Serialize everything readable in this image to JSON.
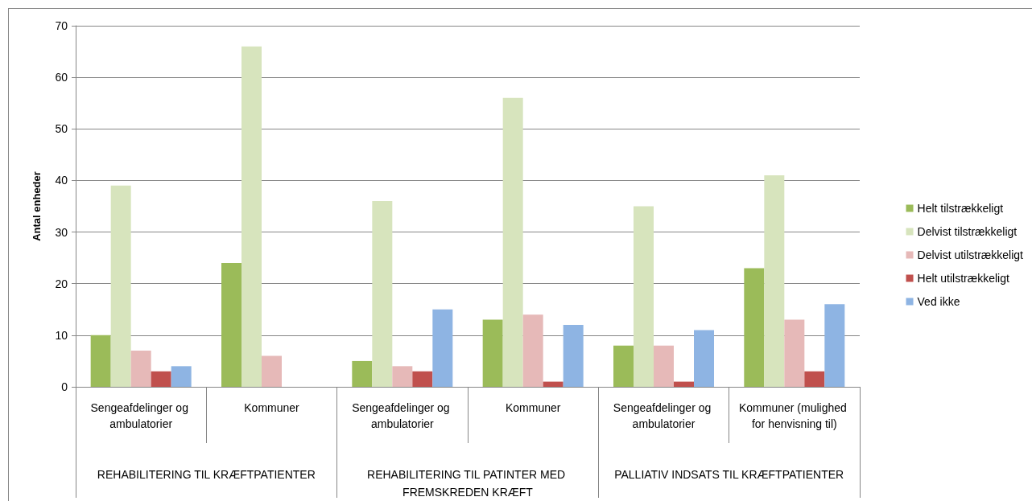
{
  "chart_data": {
    "type": "bar",
    "ylabel": "Antal enheder",
    "categories": [
      "Sengeafdelinger og ambulatorier",
      "Kommuner",
      "Sengeafdelinger og ambulatorier",
      "Kommuner",
      "Sengeafdelinger og ambulatorier",
      "Kommuner (mulighed for henvisning til)"
    ],
    "annotations": [
      "REHABILITERING TIL KRÆFTPATIENTER",
      "REHABILITERING TIL PATINTER MED FREMSKREDEN KRÆFT",
      "PALLIATIV INDSATS TIL KRÆFTPATIENTER"
    ],
    "series": [
      {
        "name": "Helt tilstrækkeligt",
        "color": "#9bbb59",
        "values": [
          10,
          24,
          5,
          13,
          8,
          23
        ]
      },
      {
        "name": "Delvist tilstrækkeligt",
        "color": "#d7e4bd",
        "values": [
          39,
          66,
          36,
          56,
          35,
          41
        ]
      },
      {
        "name": "Delvist utilstrækkeligt",
        "color": "#e6b9b8",
        "values": [
          7,
          6,
          4,
          14,
          8,
          13
        ]
      },
      {
        "name": "Helt utilstrækkeligt",
        "color": "#c0504d",
        "values": [
          3,
          null,
          3,
          1,
          1,
          3
        ]
      },
      {
        "name": "Ved ikke",
        "color": "#8eb4e3",
        "values": [
          4,
          null,
          15,
          12,
          11,
          16
        ]
      }
    ],
    "ylim": [
      0,
      70
    ],
    "yticks": [
      0,
      10,
      20,
      30,
      40,
      50,
      60,
      70
    ],
    "grid": "y",
    "legend": "right"
  }
}
